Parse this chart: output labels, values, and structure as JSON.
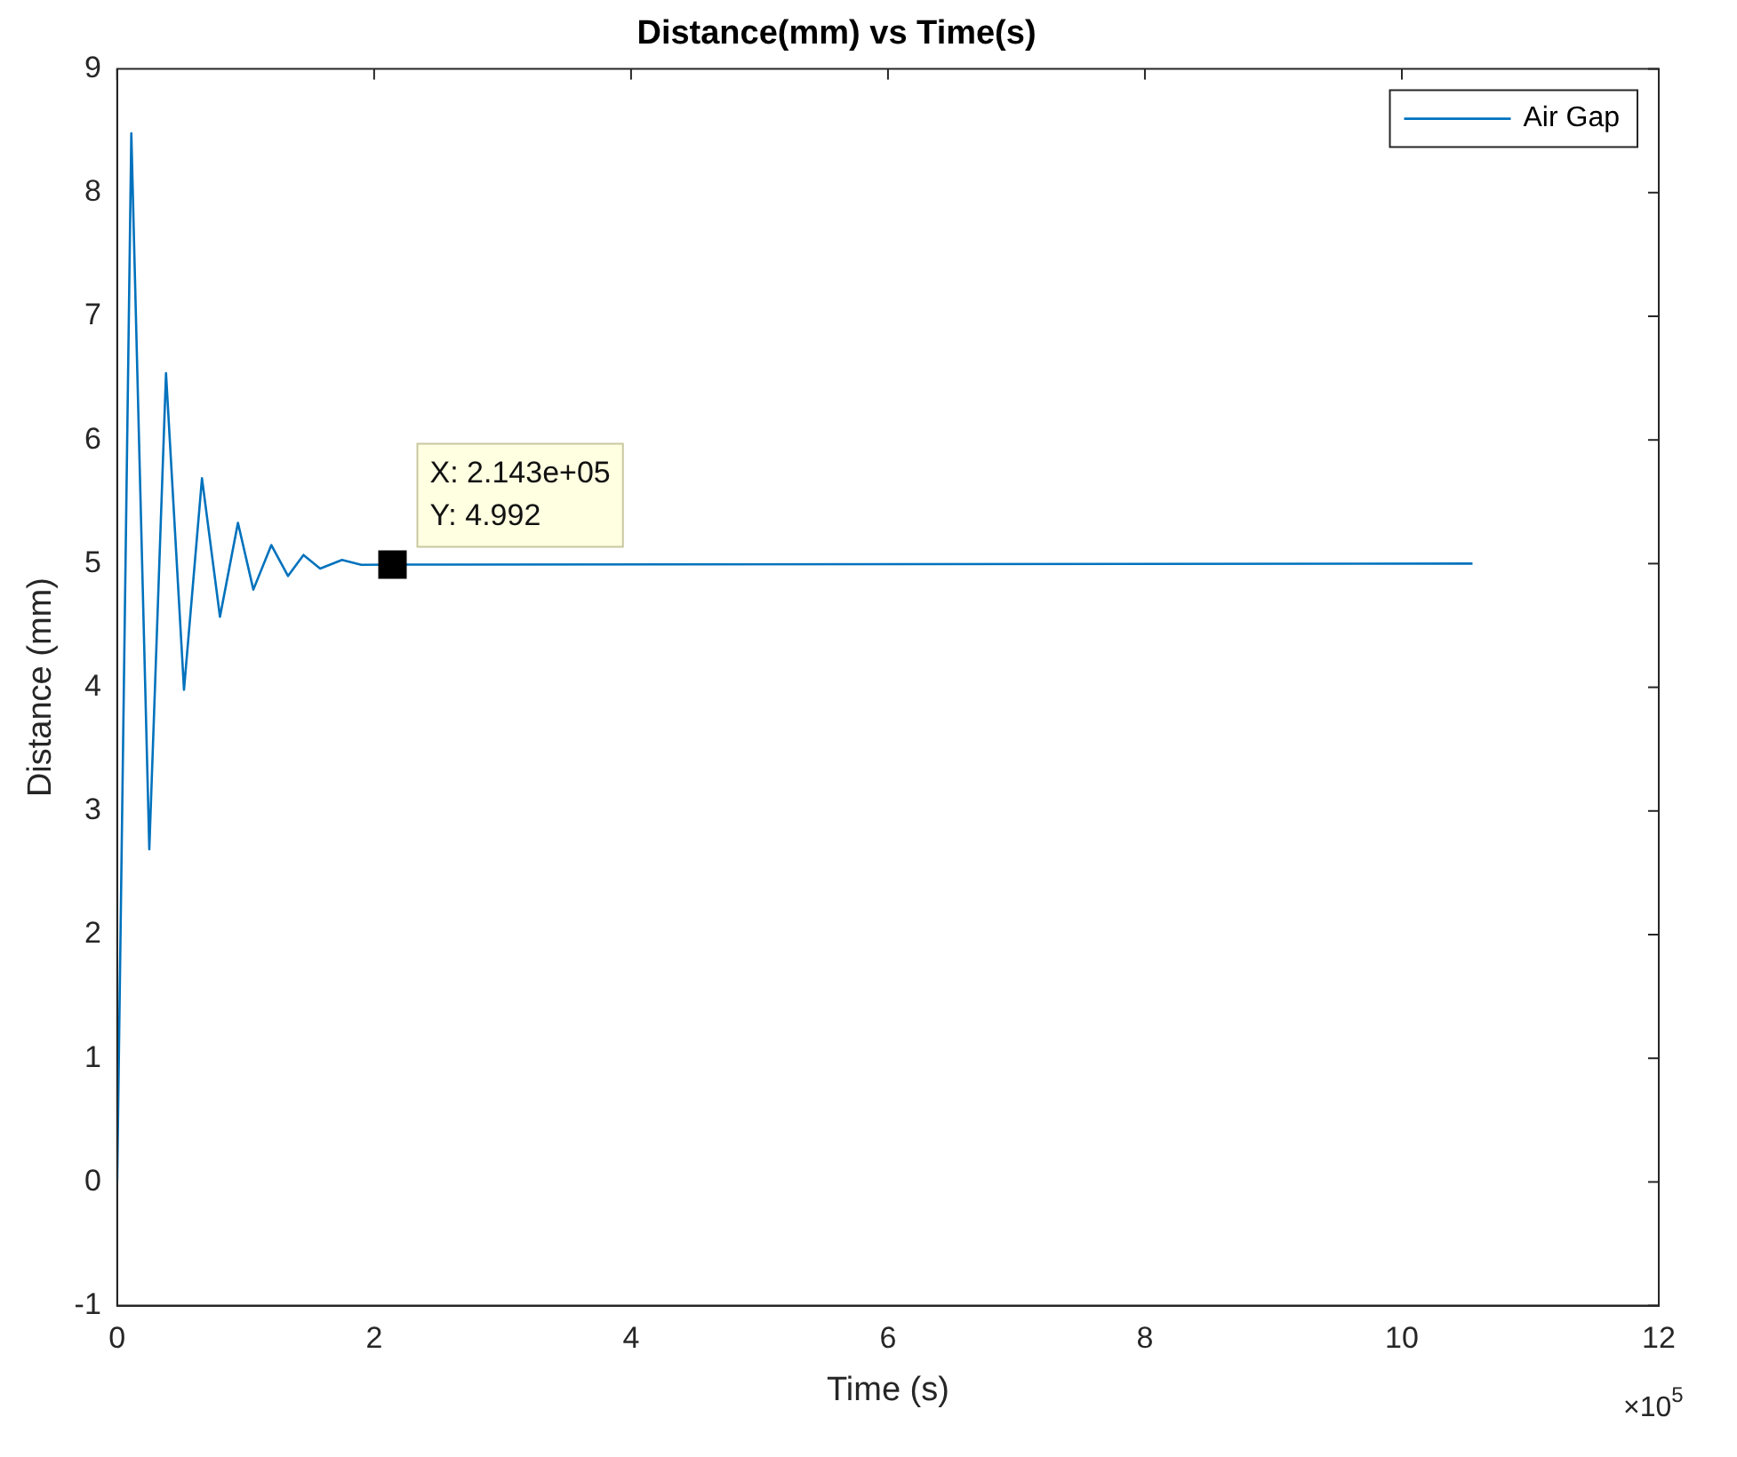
{
  "chart_data": {
    "type": "line",
    "title": "Distance(mm) vs Time(s)",
    "xlabel": "Time (s)",
    "ylabel": "Distance (mm)",
    "series": [
      {
        "name": "Air Gap",
        "color": "#0072bd",
        "x": [
          0,
          0.11,
          0.25,
          0.38,
          0.52,
          0.66,
          0.8,
          0.94,
          1.06,
          1.2,
          1.33,
          1.45,
          1.58,
          1.75,
          1.9,
          2.143,
          10.55
        ],
        "values": [
          0,
          8.48,
          2.69,
          6.54,
          3.98,
          5.69,
          4.57,
          5.33,
          4.79,
          5.15,
          4.9,
          5.07,
          4.96,
          5.03,
          4.99,
          4.992,
          5
        ]
      }
    ],
    "xlim": [
      0,
      12
    ],
    "xticks": [
      0,
      2,
      4,
      6,
      8,
      10,
      12
    ],
    "ylim": [
      -1,
      9
    ],
    "yticks": [
      -1,
      0,
      1,
      2,
      3,
      4,
      5,
      6,
      7,
      8,
      9
    ],
    "grid": false,
    "legend": "top right",
    "marker": "none",
    "line_style": "solid",
    "annotations": [
      {
        "text": "X: 2.143e+05\nY: 4.992",
        "x": 2.143,
        "y": 4.992
      },
      "×10$^{5}$"
    ]
  }
}
